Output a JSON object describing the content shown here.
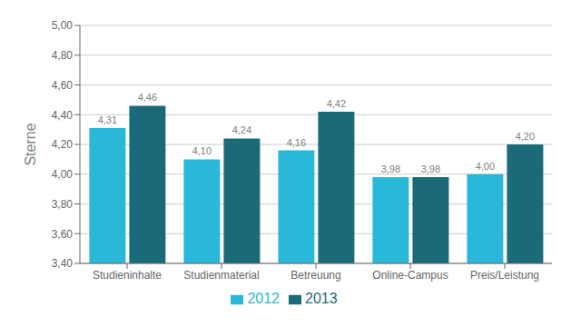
{
  "chart_data": {
    "type": "bar",
    "categories": [
      "Studieninhalte",
      "Studienmaterial",
      "Betreuung",
      "Online-Campus",
      "Preis/Leistung"
    ],
    "series": [
      {
        "name": "2012",
        "color": "#29b8d8",
        "values": [
          4.31,
          4.1,
          4.16,
          3.98,
          4
        ],
        "value_labels": [
          "4,31",
          "4,10",
          "4,16",
          "3,98",
          "4,00"
        ]
      },
      {
        "name": "2013",
        "color": "#1a6a7a",
        "values": [
          4.46,
          4.24,
          4.42,
          3.98,
          4.2
        ],
        "value_labels": [
          "4,46",
          "4,24",
          "4,42",
          "3,98",
          "4,20"
        ]
      }
    ],
    "ylabel": "Sterne",
    "ylim": [
      3.4,
      5.0
    ],
    "yticks": [
      {
        "value": 3.4,
        "label": "3,40"
      },
      {
        "value": 3.6,
        "label": "3,60"
      },
      {
        "value": 3.8,
        "label": "3,80"
      },
      {
        "value": 4.0,
        "label": "4,00"
      },
      {
        "value": 4.2,
        "label": "4,20"
      },
      {
        "value": 4.4,
        "label": "4,40"
      },
      {
        "value": 4.6,
        "label": "4,60"
      },
      {
        "value": 4.8,
        "label": "4,80"
      },
      {
        "value": 5.0,
        "label": "5,00"
      }
    ],
    "grid": true,
    "legend": "bottom",
    "data_labels": true
  }
}
